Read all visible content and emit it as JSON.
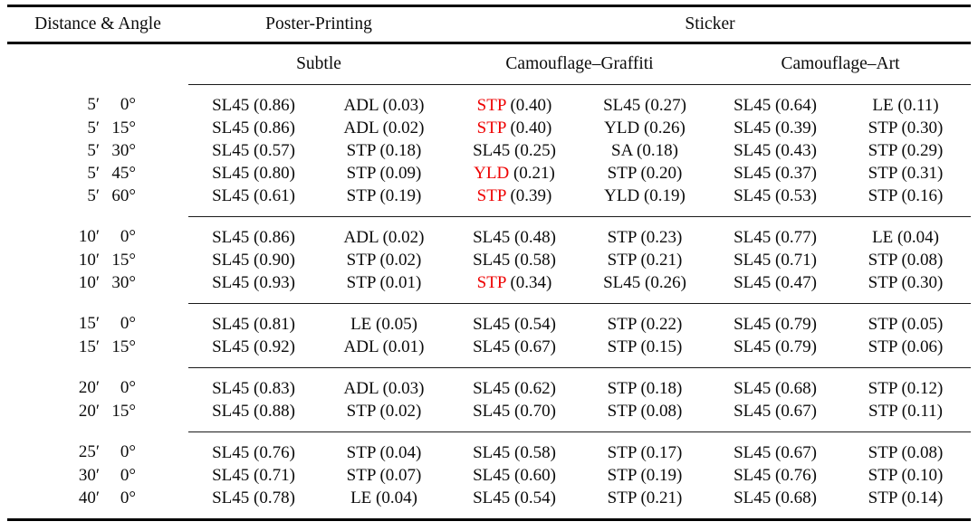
{
  "colors": {
    "highlight_red": "#ee0000",
    "text": "#0b0b0b",
    "rule": "#000000"
  },
  "table": {
    "corner_header": "Distance & Angle",
    "top_groups": [
      {
        "label": "Poster-Printing"
      },
      {
        "label": "Sticker"
      }
    ],
    "sub_groups": [
      {
        "label": "Subtle"
      },
      {
        "label": "Camouflage–Graffiti"
      },
      {
        "label": "Camouflage–Art"
      }
    ],
    "row_groups": [
      {
        "rows": [
          {
            "distance": "5′",
            "angle": "0°",
            "cells": [
              {
                "label": "SL45",
                "value": "(0.86)"
              },
              {
                "label": "ADL",
                "value": "(0.03)"
              },
              {
                "label": "STP",
                "value": "(0.40)",
                "red": true
              },
              {
                "label": "SL45",
                "value": "(0.27)"
              },
              {
                "label": "SL45",
                "value": "(0.64)"
              },
              {
                "label": "LE",
                "value": "(0.11)"
              }
            ]
          },
          {
            "distance": "5′",
            "angle": "15°",
            "cells": [
              {
                "label": "SL45",
                "value": "(0.86)"
              },
              {
                "label": "ADL",
                "value": "(0.02)"
              },
              {
                "label": "STP",
                "value": "(0.40)",
                "red": true
              },
              {
                "label": "YLD",
                "value": "(0.26)"
              },
              {
                "label": "SL45",
                "value": "(0.39)"
              },
              {
                "label": "STP",
                "value": "(0.30)"
              }
            ]
          },
          {
            "distance": "5′",
            "angle": "30°",
            "cells": [
              {
                "label": "SL45",
                "value": "(0.57)"
              },
              {
                "label": "STP",
                "value": "(0.18)"
              },
              {
                "label": "SL45",
                "value": "(0.25)"
              },
              {
                "label": "SA",
                "value": "(0.18)"
              },
              {
                "label": "SL45",
                "value": "(0.43)"
              },
              {
                "label": "STP",
                "value": "(0.29)"
              }
            ]
          },
          {
            "distance": "5′",
            "angle": "45°",
            "cells": [
              {
                "label": "SL45",
                "value": "(0.80)"
              },
              {
                "label": "STP",
                "value": "(0.09)"
              },
              {
                "label": "YLD",
                "value": "(0.21)",
                "red": true
              },
              {
                "label": "STP",
                "value": "(0.20)"
              },
              {
                "label": "SL45",
                "value": "(0.37)"
              },
              {
                "label": "STP",
                "value": "(0.31)"
              }
            ]
          },
          {
            "distance": "5′",
            "angle": "60°",
            "cells": [
              {
                "label": "SL45",
                "value": "(0.61)"
              },
              {
                "label": "STP",
                "value": "(0.19)"
              },
              {
                "label": "STP",
                "value": "(0.39)",
                "red": true
              },
              {
                "label": "YLD",
                "value": "(0.19)"
              },
              {
                "label": "SL45",
                "value": "(0.53)"
              },
              {
                "label": "STP",
                "value": "(0.16)"
              }
            ]
          }
        ]
      },
      {
        "rows": [
          {
            "distance": "10′",
            "angle": "0°",
            "cells": [
              {
                "label": "SL45",
                "value": "(0.86)"
              },
              {
                "label": "ADL",
                "value": "(0.02)"
              },
              {
                "label": "SL45",
                "value": "(0.48)"
              },
              {
                "label": "STP",
                "value": "(0.23)"
              },
              {
                "label": "SL45",
                "value": "(0.77)"
              },
              {
                "label": "LE",
                "value": "(0.04)"
              }
            ]
          },
          {
            "distance": "10′",
            "angle": "15°",
            "cells": [
              {
                "label": "SL45",
                "value": "(0.90)"
              },
              {
                "label": "STP",
                "value": "(0.02)"
              },
              {
                "label": "SL45",
                "value": "(0.58)"
              },
              {
                "label": "STP",
                "value": "(0.21)"
              },
              {
                "label": "SL45",
                "value": "(0.71)"
              },
              {
                "label": "STP",
                "value": "(0.08)"
              }
            ]
          },
          {
            "distance": "10′",
            "angle": "30°",
            "cells": [
              {
                "label": "SL45",
                "value": "(0.93)"
              },
              {
                "label": "STP",
                "value": "(0.01)"
              },
              {
                "label": "STP",
                "value": "(0.34)",
                "red": true
              },
              {
                "label": "SL45",
                "value": "(0.26)"
              },
              {
                "label": "SL45",
                "value": "(0.47)"
              },
              {
                "label": "STP",
                "value": "(0.30)"
              }
            ]
          }
        ]
      },
      {
        "rows": [
          {
            "distance": "15′",
            "angle": "0°",
            "cells": [
              {
                "label": "SL45",
                "value": "(0.81)"
              },
              {
                "label": "LE",
                "value": "(0.05)"
              },
              {
                "label": "SL45",
                "value": "(0.54)"
              },
              {
                "label": "STP",
                "value": "(0.22)"
              },
              {
                "label": "SL45",
                "value": "(0.79)"
              },
              {
                "label": "STP",
                "value": "(0.05)"
              }
            ]
          },
          {
            "distance": "15′",
            "angle": "15°",
            "cells": [
              {
                "label": "SL45",
                "value": "(0.92)"
              },
              {
                "label": "ADL",
                "value": "(0.01)"
              },
              {
                "label": "SL45",
                "value": "(0.67)"
              },
              {
                "label": "STP",
                "value": "(0.15)"
              },
              {
                "label": "SL45",
                "value": "(0.79)"
              },
              {
                "label": "STP",
                "value": "(0.06)"
              }
            ]
          }
        ]
      },
      {
        "rows": [
          {
            "distance": "20′",
            "angle": "0°",
            "cells": [
              {
                "label": "SL45",
                "value": "(0.83)"
              },
              {
                "label": "ADL",
                "value": "(0.03)"
              },
              {
                "label": "SL45",
                "value": "(0.62)"
              },
              {
                "label": "STP",
                "value": "(0.18)"
              },
              {
                "label": "SL45",
                "value": "(0.68)"
              },
              {
                "label": "STP",
                "value": "(0.12)"
              }
            ]
          },
          {
            "distance": "20′",
            "angle": "15°",
            "cells": [
              {
                "label": "SL45",
                "value": "(0.88)"
              },
              {
                "label": "STP",
                "value": "(0.02)"
              },
              {
                "label": "SL45",
                "value": "(0.70)"
              },
              {
                "label": "STP",
                "value": "(0.08)"
              },
              {
                "label": "SL45",
                "value": "(0.67)"
              },
              {
                "label": "STP",
                "value": "(0.11)"
              }
            ]
          }
        ]
      },
      {
        "rows": [
          {
            "distance": "25′",
            "angle": "0°",
            "cells": [
              {
                "label": "SL45",
                "value": "(0.76)"
              },
              {
                "label": "STP",
                "value": "(0.04)"
              },
              {
                "label": "SL45",
                "value": "(0.58)"
              },
              {
                "label": "STP",
                "value": "(0.17)"
              },
              {
                "label": "SL45",
                "value": "(0.67)"
              },
              {
                "label": "STP",
                "value": "(0.08)"
              }
            ]
          },
          {
            "distance": "30′",
            "angle": "0°",
            "cells": [
              {
                "label": "SL45",
                "value": "(0.71)"
              },
              {
                "label": "STP",
                "value": "(0.07)"
              },
              {
                "label": "SL45",
                "value": "(0.60)"
              },
              {
                "label": "STP",
                "value": "(0.19)"
              },
              {
                "label": "SL45",
                "value": "(0.76)"
              },
              {
                "label": "STP",
                "value": "(0.10)"
              }
            ]
          },
          {
            "distance": "40′",
            "angle": "0°",
            "cells": [
              {
                "label": "SL45",
                "value": "(0.78)"
              },
              {
                "label": "LE",
                "value": "(0.04)"
              },
              {
                "label": "SL45",
                "value": "(0.54)"
              },
              {
                "label": "STP",
                "value": "(0.21)"
              },
              {
                "label": "SL45",
                "value": "(0.68)"
              },
              {
                "label": "STP",
                "value": "(0.14)"
              }
            ]
          }
        ]
      }
    ]
  }
}
